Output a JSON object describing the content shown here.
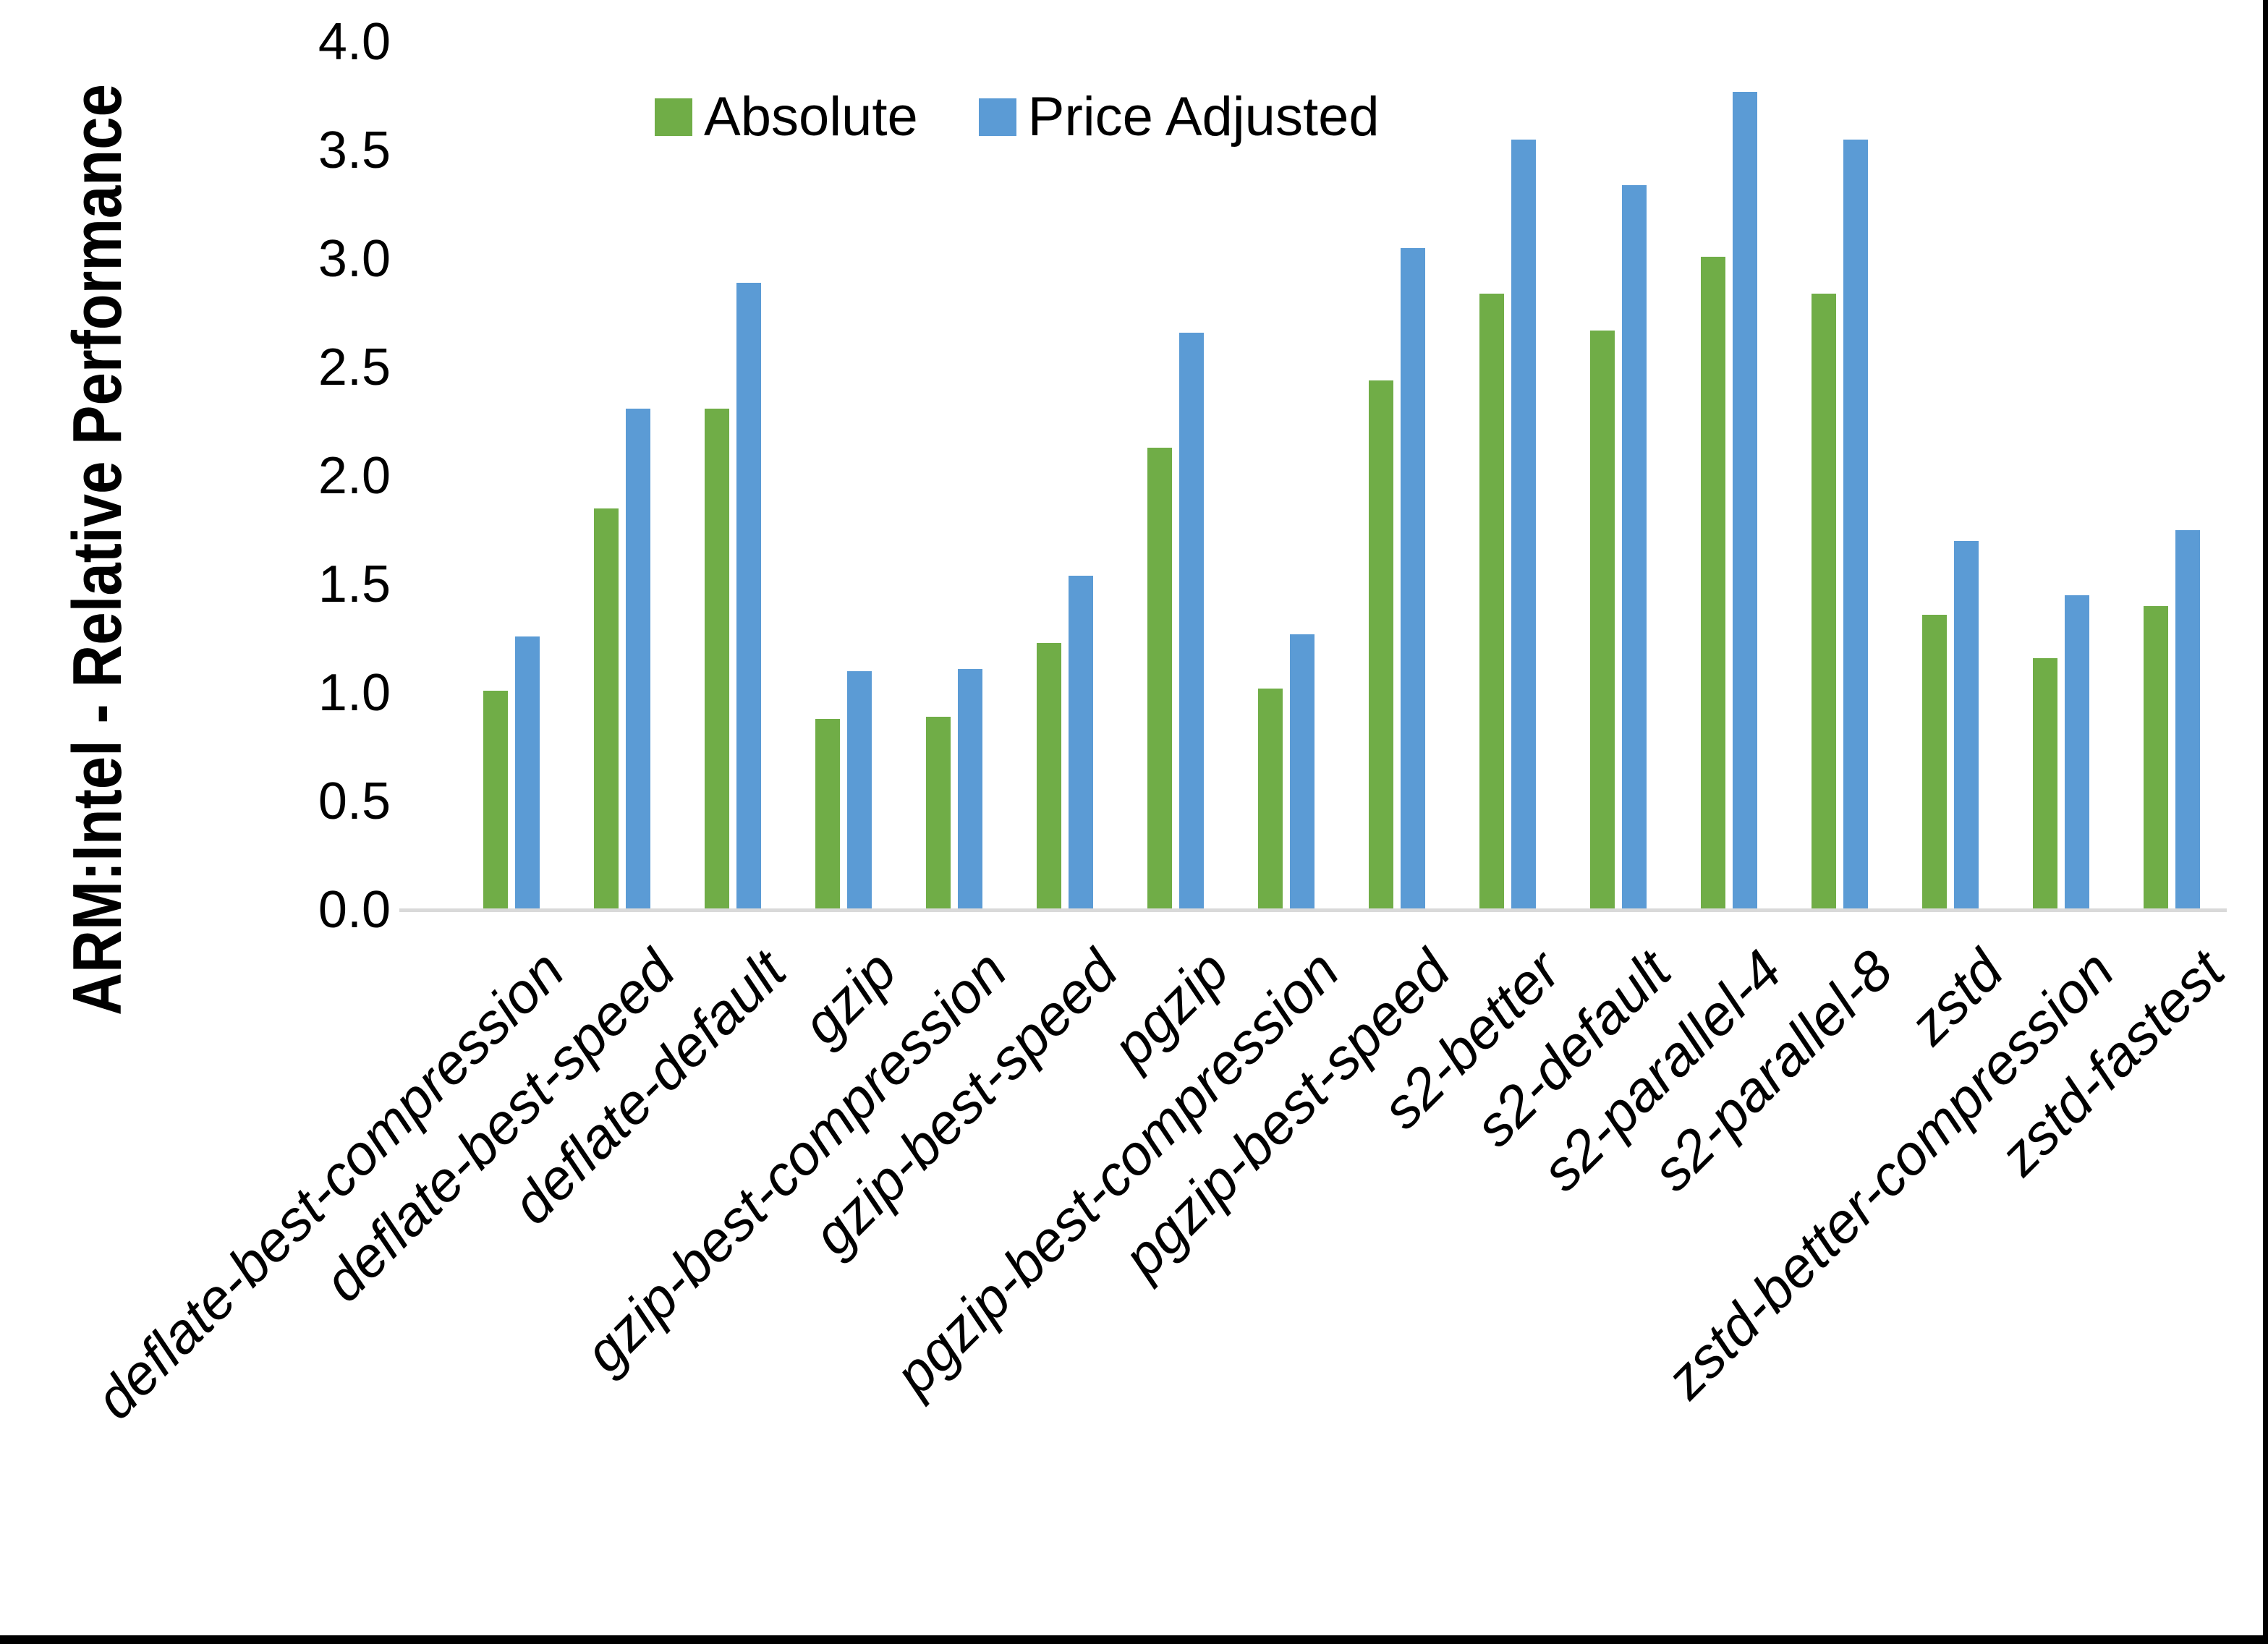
{
  "chart_data": {
    "type": "bar",
    "title": "",
    "xlabel": "",
    "ylabel": "ARM:Intel - Relative Performance",
    "ylim": [
      0.0,
      4.0
    ],
    "ytick_step": 0.5,
    "ytick_labels": [
      "4.0",
      "3.5",
      "3.0",
      "2.5",
      "2.0",
      "1.5",
      "1.0",
      "0.5",
      "0.0"
    ],
    "grid": false,
    "legend_position": "top-center",
    "categories": [
      "deflate-best-compression",
      "deflate-best-speed",
      "deflate-default",
      "gzip",
      "gzip-best-compression",
      "gzip-best-speed",
      "pgzip",
      "pgzip-best-compression",
      "pgzip-best-speed",
      "s2-better",
      "s2-default",
      "s2-parallel-4",
      "s2-parallel-8",
      "zstd",
      "zstd-better-compression",
      "zstd-fastest"
    ],
    "series": [
      {
        "name": "Absolute",
        "color": "#70AD47",
        "values": [
          1.01,
          1.85,
          2.31,
          0.88,
          0.89,
          1.23,
          2.13,
          1.02,
          2.44,
          2.84,
          2.67,
          3.01,
          2.84,
          1.36,
          1.16,
          1.4
        ]
      },
      {
        "name": "Price Adjusted",
        "color": "#5B9BD5",
        "values": [
          1.26,
          2.31,
          2.89,
          1.1,
          1.11,
          1.54,
          2.66,
          1.27,
          3.05,
          3.55,
          3.34,
          3.77,
          3.55,
          1.7,
          1.45,
          1.75
        ]
      }
    ]
  },
  "colors": {
    "background": "#FFFFFF",
    "axis_line": "#D9D9D9",
    "text": "#000000",
    "screenshot_border": "#000000"
  }
}
